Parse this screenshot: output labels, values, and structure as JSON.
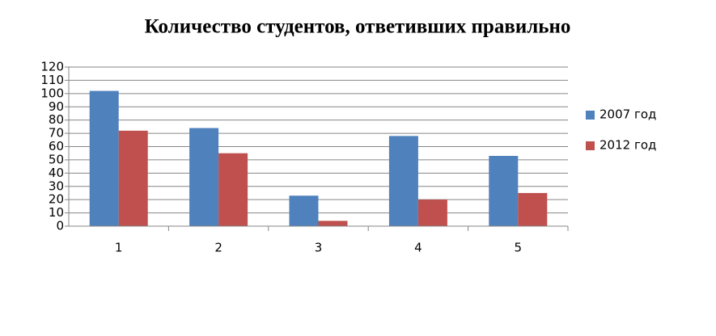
{
  "chart_data": {
    "type": "bar",
    "title": "Количество студентов, ответивших правильно",
    "categories": [
      "1",
      "2",
      "3",
      "4",
      "5"
    ],
    "series": [
      {
        "name": "2007 год",
        "color": "#4f81bd",
        "values": [
          102,
          74,
          23,
          68,
          53
        ]
      },
      {
        "name": "2012 год",
        "color": "#c0504d",
        "values": [
          72,
          55,
          4,
          20,
          25
        ]
      }
    ],
    "ylim": [
      0,
      120
    ],
    "yticks": [
      0,
      10,
      20,
      30,
      40,
      50,
      60,
      70,
      80,
      90,
      100,
      110,
      120
    ],
    "grid": true,
    "legend": "right"
  }
}
